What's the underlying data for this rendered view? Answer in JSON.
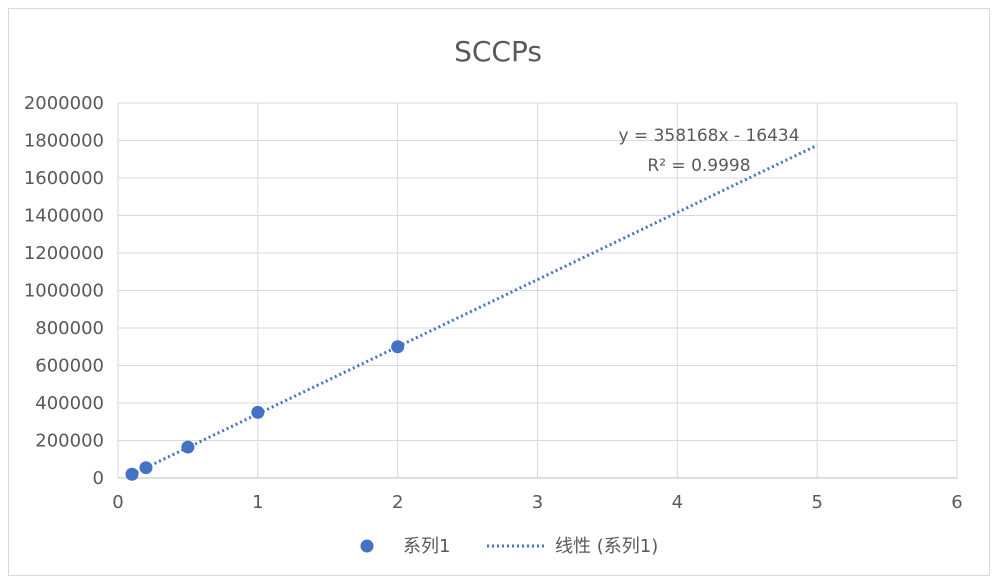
{
  "chart_data": {
    "type": "scatter",
    "title": "SCCPs",
    "xlabel": "",
    "ylabel": "",
    "xlim": [
      0,
      6
    ],
    "ylim": [
      0,
      2000000
    ],
    "x_ticks": [
      "0",
      "1",
      "2",
      "3",
      "4",
      "5",
      "6"
    ],
    "y_ticks": [
      "0",
      "200000",
      "400000",
      "600000",
      "800000",
      "1000000",
      "1200000",
      "1400000",
      "1600000",
      "1800000",
      "2000000"
    ],
    "grid": true,
    "legend_position": "bottom",
    "series": [
      {
        "name": "系列1",
        "color": "#4472C4",
        "points": [
          {
            "x": 0.1,
            "y": 20000
          },
          {
            "x": 0.2,
            "y": 55000
          },
          {
            "x": 0.5,
            "y": 165000
          },
          {
            "x": 1,
            "y": 350000
          },
          {
            "x": 2,
            "y": 700000
          }
        ]
      }
    ],
    "trendline": {
      "name": "线性 (系列1)",
      "type": "linear",
      "slope": 358168,
      "intercept": -16434,
      "x_range": [
        0.1,
        5
      ],
      "style": "dotted",
      "color": "#4472C4",
      "equation_label": "y = 358168x - 16434",
      "r2_label": "R² = 0.9998"
    }
  }
}
